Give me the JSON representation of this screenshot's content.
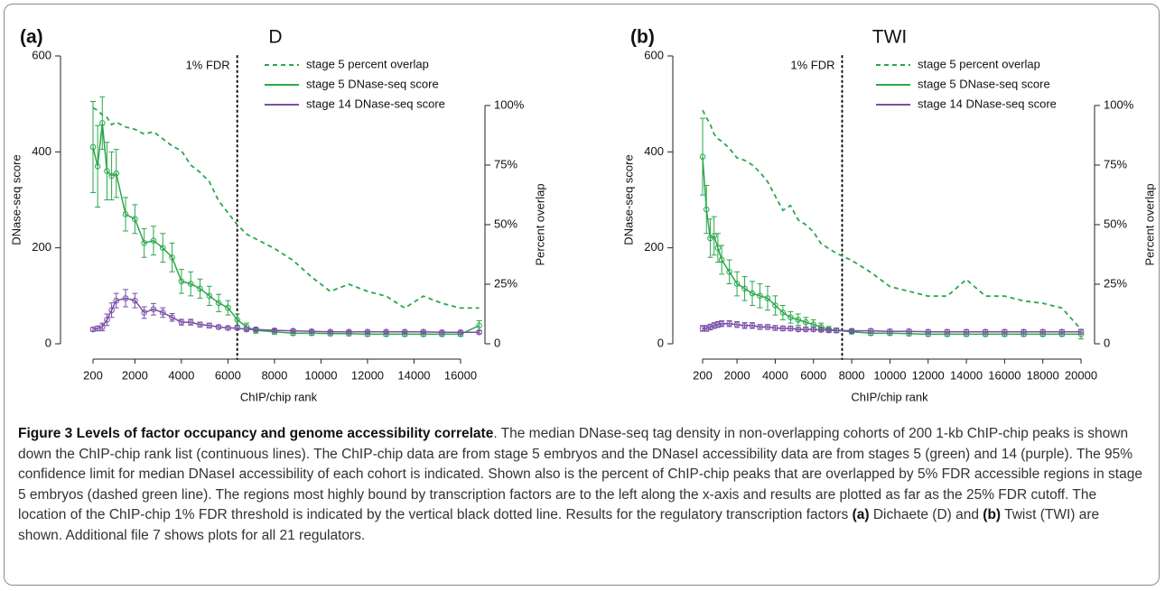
{
  "chart_data": [
    {
      "type": "line",
      "panel_label": "(a)",
      "title": "D",
      "x_label": "ChIP/chip rank",
      "y_label": "DNase-seq score",
      "y2_label": "Percent overlap",
      "fdr_line": {
        "x": 6400,
        "label": "1% FDR"
      },
      "x": [
        200,
        400,
        600,
        800,
        1000,
        1200,
        1600,
        2000,
        2400,
        2800,
        3200,
        3600,
        4000,
        4400,
        4800,
        5200,
        5600,
        6000,
        6400,
        6800,
        7200,
        8000,
        8800,
        9600,
        10400,
        11200,
        12000,
        12800,
        13600,
        14400,
        15200,
        16000,
        16800
      ],
      "series": [
        {
          "name": "stage 5 percent overlap",
          "color": "#2aa84a",
          "dashed": true,
          "axis": "y2",
          "values": [
            99,
            98,
            96,
            95,
            92,
            93,
            91,
            90,
            88,
            89,
            86,
            83,
            81,
            75,
            72,
            68,
            60,
            55,
            50,
            46,
            44,
            40,
            35,
            28,
            22,
            25,
            22,
            20,
            15,
            20,
            17,
            15,
            15
          ]
        },
        {
          "name": "stage 5 DNase-seq score",
          "color": "#2aa84a",
          "markers": true,
          "values": [
            410,
            370,
            460,
            360,
            350,
            355,
            270,
            260,
            210,
            215,
            200,
            180,
            130,
            125,
            115,
            100,
            85,
            75,
            50,
            35,
            28,
            25,
            22,
            22,
            21,
            21,
            20,
            20,
            20,
            20,
            20,
            20,
            38
          ],
          "errors": [
            95,
            85,
            55,
            60,
            50,
            50,
            35,
            30,
            30,
            30,
            30,
            30,
            25,
            25,
            20,
            20,
            18,
            15,
            12,
            8,
            6,
            5,
            4,
            4,
            4,
            4,
            4,
            4,
            4,
            4,
            4,
            4,
            10
          ]
        },
        {
          "name": "stage 14 DNase-seq score",
          "color": "#7b4fa6",
          "markers": true,
          "values": [
            30,
            32,
            35,
            50,
            70,
            90,
            95,
            90,
            65,
            72,
            65,
            55,
            45,
            45,
            40,
            38,
            35,
            33,
            33,
            30,
            30,
            28,
            27,
            26,
            25,
            25,
            25,
            25,
            25,
            25,
            24,
            24,
            24
          ],
          "errors": [
            4,
            5,
            8,
            12,
            15,
            15,
            18,
            15,
            12,
            12,
            10,
            8,
            6,
            6,
            5,
            5,
            4,
            4,
            4,
            4,
            3,
            3,
            3,
            3,
            3,
            3,
            3,
            3,
            3,
            3,
            3,
            3,
            3
          ]
        }
      ],
      "xlim": [
        -110,
        16466
      ],
      "xticks": [
        200,
        2000,
        4000,
        6000,
        8000,
        10000,
        12000,
        14000,
        16000
      ],
      "ylim": [
        0,
        600
      ],
      "yticks": [
        0,
        200,
        400,
        600
      ],
      "y2lim": [
        0,
        120.8
      ],
      "y2ticks": [
        0,
        {
          "value": 25,
          "label": "25%"
        },
        {
          "value": 50,
          "label": "50%"
        },
        {
          "value": 75,
          "label": "75%"
        },
        {
          "value": 100,
          "label": "100%"
        }
      ]
    },
    {
      "type": "line",
      "panel_label": "(b)",
      "title": "TWI",
      "x_label": "ChIP/chip rank",
      "y_label": "DNase-seq score",
      "y2_label": "Percent overlap",
      "fdr_line": {
        "x": 7500,
        "label": "1% FDR"
      },
      "x": [
        200,
        400,
        600,
        800,
        1000,
        1200,
        1600,
        2000,
        2400,
        2800,
        3200,
        3600,
        4000,
        4400,
        4800,
        5200,
        5600,
        6000,
        6400,
        6800,
        7200,
        8000,
        9000,
        10000,
        11000,
        12000,
        13000,
        14000,
        15000,
        16000,
        17000,
        18000,
        19000,
        20000
      ],
      "series": [
        {
          "name": "stage 5 percent overlap",
          "color": "#2aa84a",
          "dashed": true,
          "axis": "y2",
          "values": [
            98,
            95,
            92,
            88,
            86,
            85,
            82,
            78,
            77,
            75,
            72,
            68,
            62,
            56,
            58,
            52,
            50,
            47,
            42,
            40,
            38,
            35,
            30,
            24,
            22,
            20,
            20,
            27,
            20,
            20,
            18,
            17,
            15,
            6
          ]
        },
        {
          "name": "stage 5 DNase-seq score",
          "color": "#2aa84a",
          "markers": true,
          "values": [
            390,
            280,
            220,
            225,
            200,
            175,
            150,
            125,
            115,
            105,
            100,
            95,
            80,
            65,
            55,
            50,
            45,
            40,
            35,
            30,
            28,
            25,
            22,
            22,
            21,
            20,
            20,
            20,
            20,
            20,
            20,
            20,
            20,
            20
          ],
          "errors": [
            80,
            50,
            40,
            40,
            30,
            30,
            25,
            25,
            25,
            25,
            25,
            25,
            20,
            15,
            12,
            12,
            10,
            10,
            8,
            6,
            5,
            4,
            4,
            4,
            4,
            4,
            4,
            4,
            4,
            4,
            4,
            4,
            4,
            10
          ]
        },
        {
          "name": "stage 14 DNase-seq score",
          "color": "#7b4fa6",
          "markers": true,
          "values": [
            32,
            32,
            35,
            38,
            40,
            42,
            42,
            40,
            38,
            38,
            35,
            35,
            33,
            32,
            32,
            30,
            30,
            30,
            29,
            28,
            28,
            27,
            27,
            26,
            26,
            25,
            25,
            25,
            25,
            25,
            25,
            25,
            25,
            25
          ],
          "errors": [
            6,
            6,
            6,
            6,
            6,
            6,
            6,
            6,
            6,
            6,
            5,
            5,
            5,
            5,
            5,
            4,
            4,
            4,
            4,
            4,
            4,
            4,
            4,
            4,
            4,
            4,
            4,
            4,
            4,
            4,
            4,
            4,
            4,
            4
          ]
        }
      ],
      "xlim": [
        -178,
        20141
      ],
      "xticks": [
        200,
        2000,
        4000,
        6000,
        8000,
        10000,
        12000,
        14000,
        16000,
        18000,
        20000
      ],
      "ylim": [
        0,
        600
      ],
      "yticks": [
        0,
        200,
        400,
        600
      ],
      "y2lim": [
        0,
        120.8
      ],
      "y2ticks": [
        0,
        {
          "value": 25,
          "label": "25%"
        },
        {
          "value": 50,
          "label": "50%"
        },
        {
          "value": 75,
          "label": "75%"
        },
        {
          "value": 100,
          "label": "100%"
        }
      ]
    }
  ],
  "caption": {
    "runs": [
      {
        "text": "Figure 3 Levels of factor occupancy and genome accessibility correlate",
        "bold": true
      },
      {
        "text": ". The median DNase-seq tag density in non-overlapping cohorts of 200 1-kb ChIP-chip peaks is shown down the ChIP-chip rank list (continuous lines). The ChIP-chip data are from stage 5 embryos and the DNaseI accessibility data are from stages 5 (green) and 14 (purple). The 95% confidence limit for median DNaseI accessibility of each cohort is indicated. Shown also is the percent of ChIP-chip peaks that are overlapped by 5% FDR accessible regions in stage 5 embryos (dashed green line). The regions most highly bound by transcription factors are to the left along the x-axis and results are plotted as far as the 25% FDR cutoff. The location of the ChIP-chip 1% FDR threshold is indicated by the vertical black dotted line. Results for the regulatory transcription factors ",
        "bold": false
      },
      {
        "text": "(a)",
        "bold": true
      },
      {
        "text": " Dichaete (D) and ",
        "bold": false
      },
      {
        "text": "(b)",
        "bold": true
      },
      {
        "text": " Twist (TWI) are shown. Additional file 7 shows plots for all 21 regulators.",
        "bold": false
      }
    ]
  }
}
